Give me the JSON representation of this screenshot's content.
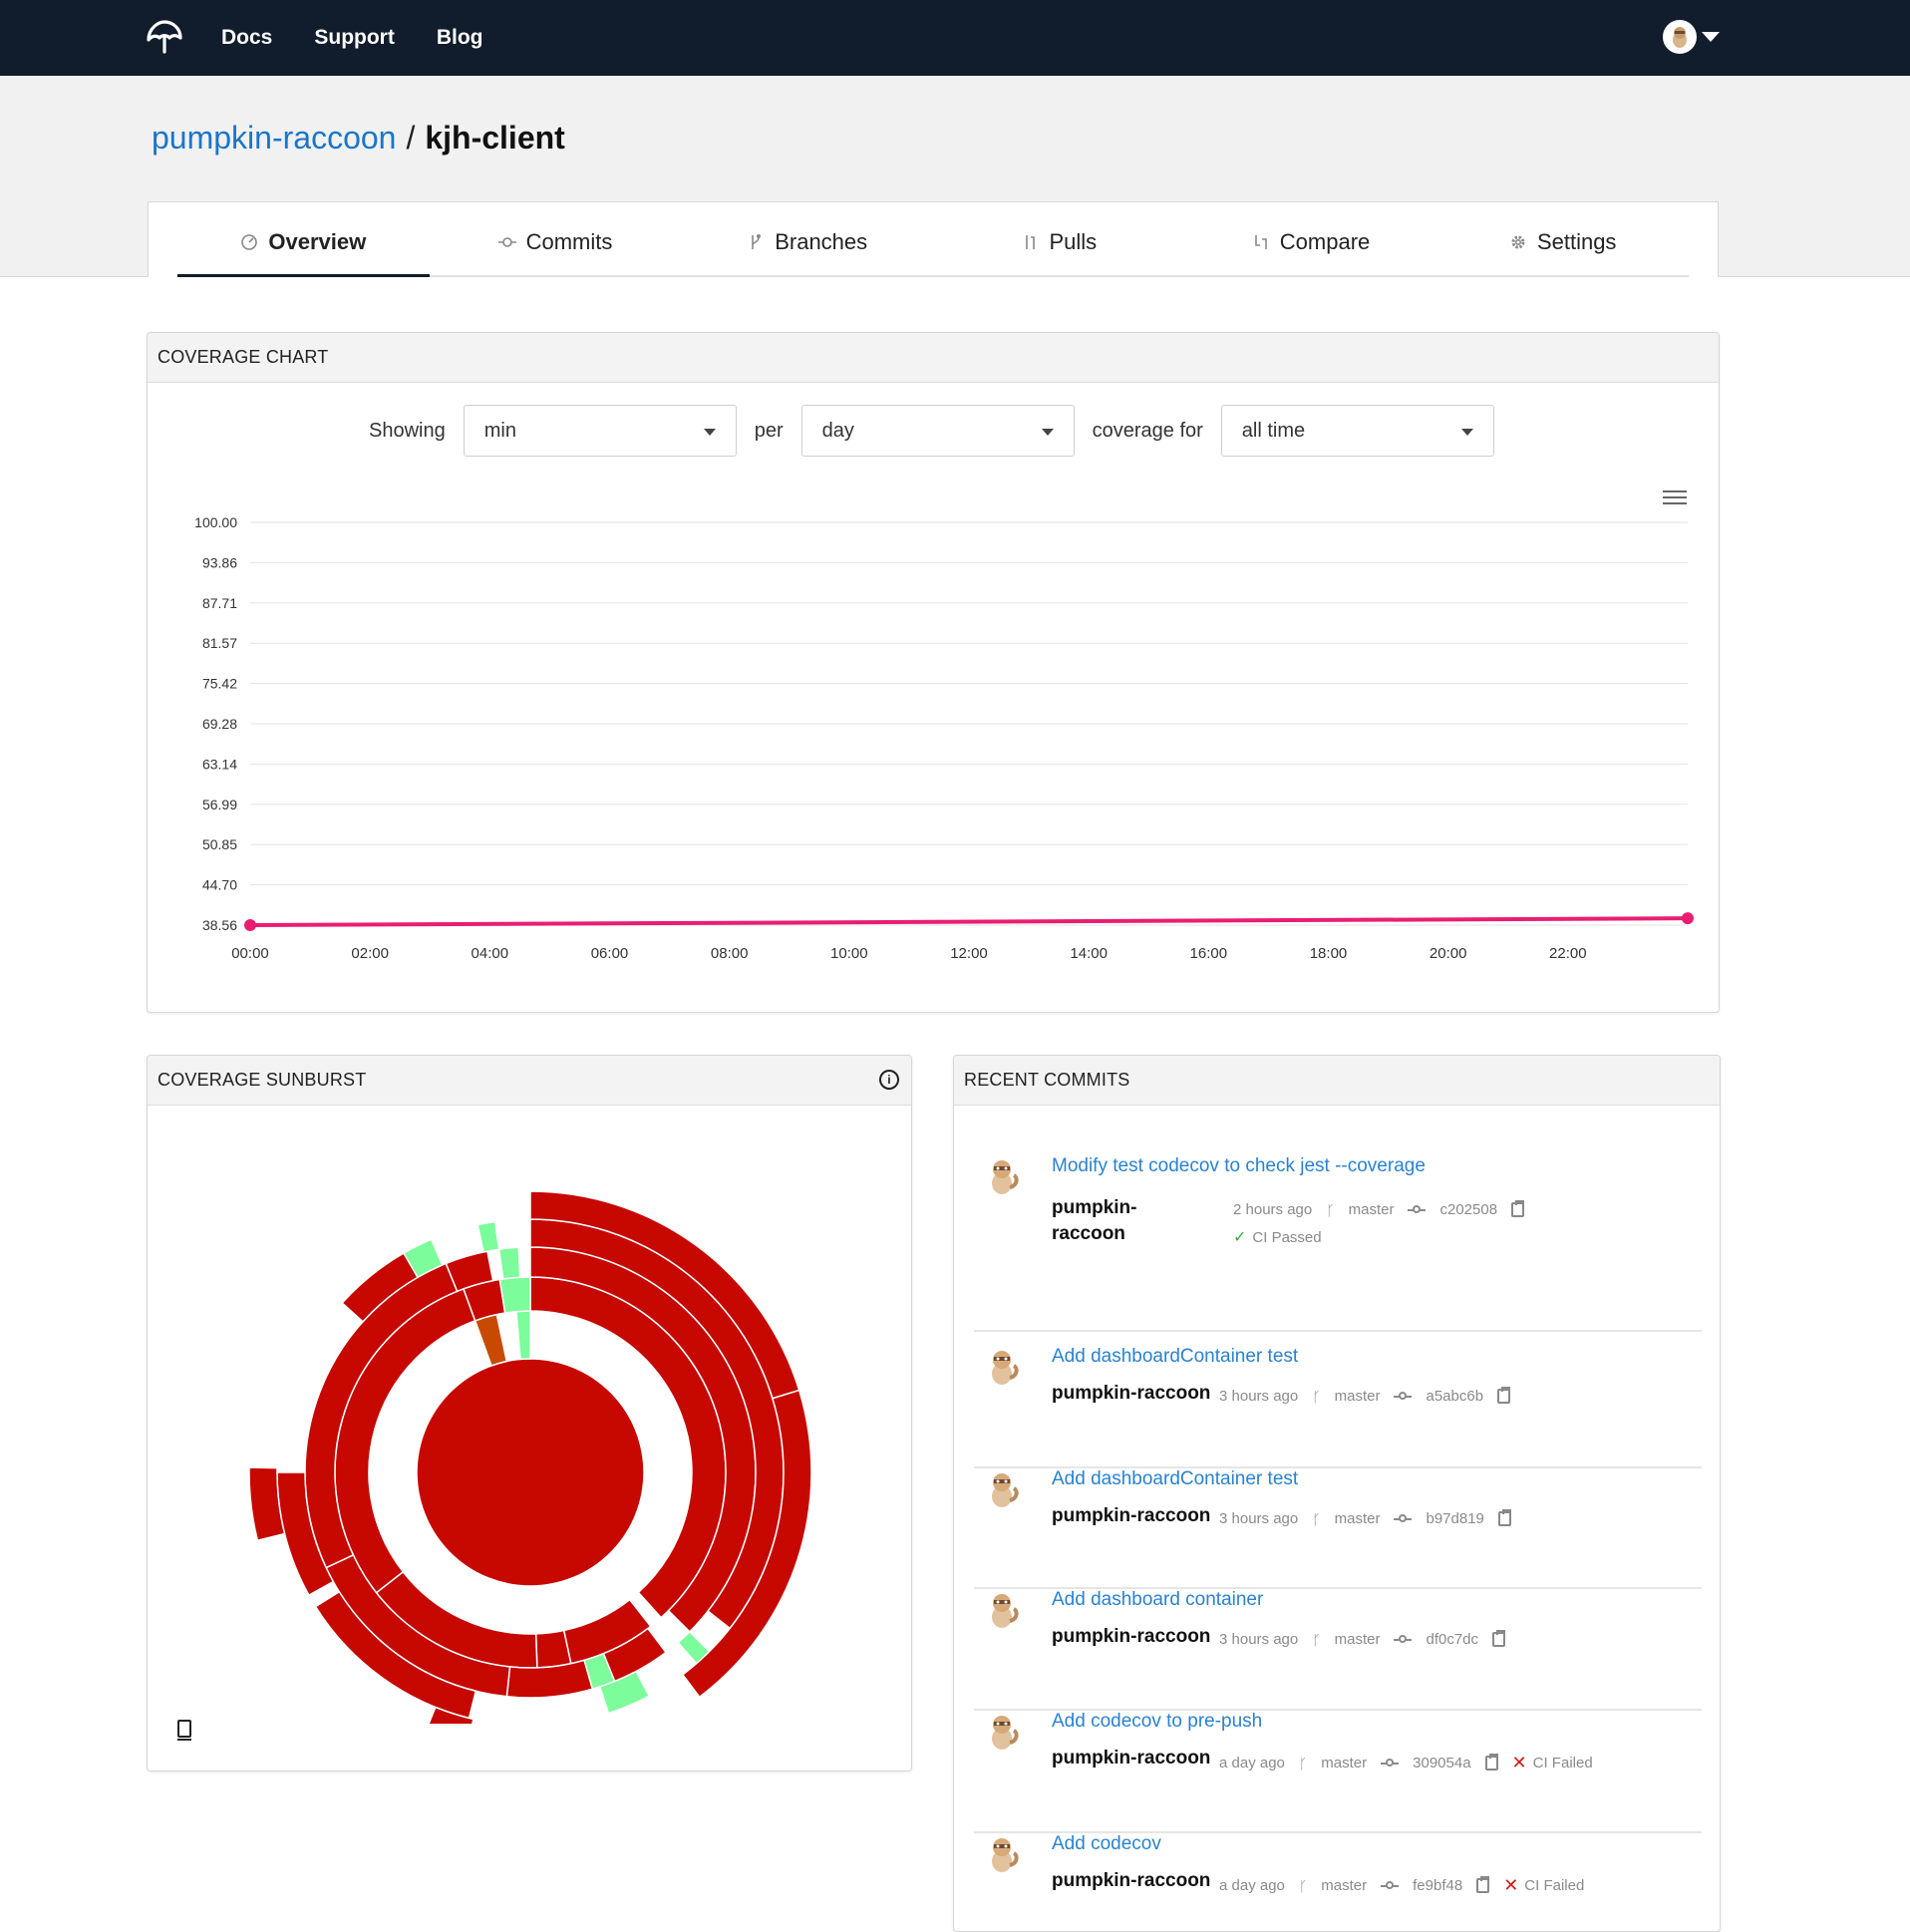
{
  "nav": {
    "logo_icon": "umbrella-logo-icon",
    "links": [
      "Docs",
      "Support",
      "Blog"
    ]
  },
  "breadcrumb": {
    "owner": "pumpkin-raccoon",
    "separator": "/",
    "repo": "kjh-client"
  },
  "tabs": [
    {
      "label": "Overview",
      "icon": "gauge-icon",
      "active": true
    },
    {
      "label": "Commits",
      "icon": "commit-icon",
      "active": false
    },
    {
      "label": "Branches",
      "icon": "branch-icon",
      "active": false
    },
    {
      "label": "Pulls",
      "icon": "pull-request-icon",
      "active": false
    },
    {
      "label": "Compare",
      "icon": "compare-icon",
      "active": false
    },
    {
      "label": "Settings",
      "icon": "gear-icon",
      "active": false
    }
  ],
  "coverage_chart": {
    "header": "COVERAGE CHART",
    "controls": {
      "showing_label": "Showing",
      "showing_value": "min",
      "per_label": "per",
      "per_value": "day",
      "coverage_label": "coverage for",
      "coverage_value": "all time"
    }
  },
  "chart_data": {
    "type": "line",
    "title": "",
    "xlabel": "",
    "ylabel": "",
    "y_ticks": [
      "100.00",
      "93.86",
      "87.71",
      "81.57",
      "75.42",
      "69.28",
      "63.14",
      "56.99",
      "50.85",
      "44.70",
      "38.56"
    ],
    "x_ticks": [
      "00:00",
      "02:00",
      "04:00",
      "06:00",
      "08:00",
      "10:00",
      "12:00",
      "14:00",
      "16:00",
      "18:00",
      "20:00",
      "22:00"
    ],
    "ylim": [
      38.56,
      100.0
    ],
    "xlim": [
      0,
      24
    ],
    "series": [
      {
        "color": "#e91e72",
        "x": [
          0,
          24
        ],
        "y": [
          38.56,
          39.6
        ]
      }
    ],
    "grid": true
  },
  "sunburst": {
    "header": "COVERAGE SUNBURST",
    "info_icon": "info-icon",
    "footer_icon": "book-icon",
    "colors": {
      "red": "#c60800",
      "orange": "#c84a00",
      "green": "#7cfc9b"
    }
  },
  "recent_commits": {
    "header": "RECENT COMMITS",
    "items": [
      {
        "message": "Modify test codecov to check jest --coverage",
        "author": "pumpkin-raccoon",
        "time": "2 hours ago",
        "branch": "master",
        "sha": "c202508",
        "ci": "CI Passed",
        "ci_status": "passed"
      },
      {
        "message": "Add dashboardContainer test",
        "author": "pumpkin-raccoon",
        "time": "3 hours ago",
        "branch": "master",
        "sha": "a5abc6b",
        "ci": "",
        "ci_status": "none"
      },
      {
        "message": "Add dashboardContainer test",
        "author": "pumpkin-raccoon",
        "time": "3 hours ago",
        "branch": "master",
        "sha": "b97d819",
        "ci": "",
        "ci_status": "none"
      },
      {
        "message": "Add dashboard container",
        "author": "pumpkin-raccoon",
        "time": "3 hours ago",
        "branch": "master",
        "sha": "df0c7dc",
        "ci": "",
        "ci_status": "none"
      },
      {
        "message": "Add codecov to pre-push",
        "author": "pumpkin-raccoon",
        "time": "a day ago",
        "branch": "master",
        "sha": "309054a",
        "ci": "CI Failed",
        "ci_status": "failed"
      },
      {
        "message": "Add codecov",
        "author": "pumpkin-raccoon",
        "time": "a day ago",
        "branch": "master",
        "sha": "fe9bf48",
        "ci": "CI Failed",
        "ci_status": "failed"
      }
    ]
  }
}
